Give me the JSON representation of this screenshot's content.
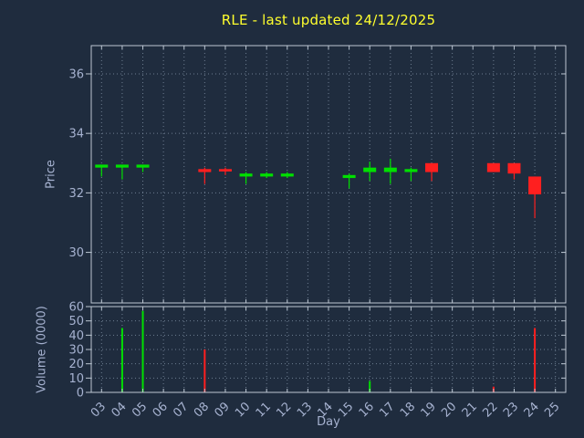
{
  "chart_data": {
    "type": "candlestick",
    "title": "RLE - last updated 24/12/2025",
    "xlabel": "Day",
    "x_tick_labels": [
      "03",
      "04",
      "05",
      "06",
      "07",
      "08",
      "09",
      "10",
      "11",
      "12",
      "13",
      "14",
      "15",
      "16",
      "17",
      "18",
      "19",
      "20",
      "21",
      "22",
      "23",
      "24",
      "25"
    ],
    "price_panel": {
      "ylabel": "Price",
      "yticks": [
        30,
        32,
        34,
        36
      ],
      "ylim": [
        28.3,
        36.95
      ]
    },
    "volume_panel": {
      "ylabel": "Volume (0000)",
      "yticks": [
        0,
        10,
        20,
        30,
        40,
        50,
        60
      ],
      "ylim": [
        0,
        60
      ]
    },
    "candles": [
      {
        "day": 3,
        "open": 32.85,
        "high": 32.95,
        "low": 32.55,
        "close": 32.95,
        "dir": "up"
      },
      {
        "day": 4,
        "open": 32.85,
        "high": 32.95,
        "low": 32.45,
        "close": 32.95,
        "dir": "up"
      },
      {
        "day": 5,
        "open": 32.85,
        "high": 32.95,
        "low": 32.7,
        "close": 32.95,
        "dir": "up"
      },
      {
        "day": 8,
        "open": 32.8,
        "high": 32.85,
        "low": 32.3,
        "close": 32.7,
        "dir": "down"
      },
      {
        "day": 9,
        "open": 32.8,
        "high": 32.85,
        "low": 32.6,
        "close": 32.72,
        "dir": "down"
      },
      {
        "day": 10,
        "open": 32.55,
        "high": 32.7,
        "low": 32.3,
        "close": 32.65,
        "dir": "up"
      },
      {
        "day": 11,
        "open": 32.55,
        "high": 32.7,
        "low": 32.5,
        "close": 32.65,
        "dir": "up"
      },
      {
        "day": 12,
        "open": 32.55,
        "high": 32.7,
        "low": 32.5,
        "close": 32.65,
        "dir": "up"
      },
      {
        "day": 15,
        "open": 32.5,
        "high": 32.65,
        "low": 32.15,
        "close": 32.6,
        "dir": "up"
      },
      {
        "day": 16,
        "open": 32.7,
        "high": 33.05,
        "low": 32.4,
        "close": 32.85,
        "dir": "up"
      },
      {
        "day": 17,
        "open": 32.7,
        "high": 33.15,
        "low": 32.3,
        "close": 32.85,
        "dir": "up"
      },
      {
        "day": 18,
        "open": 32.7,
        "high": 32.85,
        "low": 32.4,
        "close": 32.8,
        "dir": "up"
      },
      {
        "day": 19,
        "open": 33.0,
        "high": 33.0,
        "low": 32.4,
        "close": 32.7,
        "dir": "down"
      },
      {
        "day": 22,
        "open": 33.0,
        "high": 33.0,
        "low": 32.7,
        "close": 32.7,
        "dir": "down"
      },
      {
        "day": 23,
        "open": 33.0,
        "high": 33.0,
        "low": 32.45,
        "close": 32.65,
        "dir": "down"
      },
      {
        "day": 24,
        "open": 32.55,
        "high": 32.55,
        "low": 31.15,
        "close": 31.95,
        "dir": "down"
      }
    ],
    "volumes": [
      {
        "day": 4,
        "value": 45,
        "dir": "up"
      },
      {
        "day": 5,
        "value": 57,
        "dir": "up"
      },
      {
        "day": 8,
        "value": 30,
        "dir": "down"
      },
      {
        "day": 16,
        "value": 8,
        "dir": "up"
      },
      {
        "day": 22,
        "value": 4,
        "dir": "down"
      },
      {
        "day": 24,
        "value": 45,
        "dir": "down"
      }
    ],
    "colors": {
      "up": "#00e000",
      "down": "#ff1f1f",
      "background": "#1f2c3e",
      "grid": "#8fa0b4",
      "frame": "#bcc6d2",
      "text": "#a6b2d0",
      "title": "#ffff2e"
    }
  }
}
